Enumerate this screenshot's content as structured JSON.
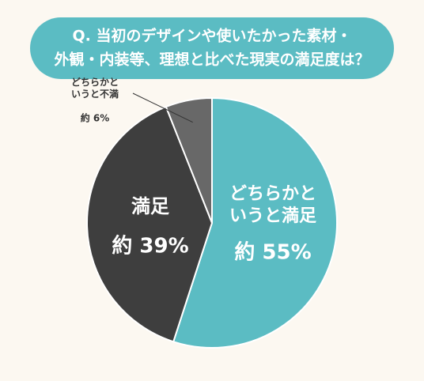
{
  "chart_data": {
    "type": "pie",
    "title": [
      "Q. 当初のデザインや使いたかった素材・",
      "外観・内装等、理想と比べた現実の満足度は？"
    ],
    "categories": [
      [
        "どちらかと",
        "いうと満足"
      ],
      [
        "満足"
      ],
      [
        "どちらかと",
        "いうと不満"
      ]
    ],
    "values": [
      55,
      39,
      6
    ],
    "value_labels": [
      "約 55%",
      "約 39%",
      "約 6%"
    ],
    "colors": [
      "#5bbcc3",
      "#3e3e3e",
      "#686868"
    ]
  }
}
